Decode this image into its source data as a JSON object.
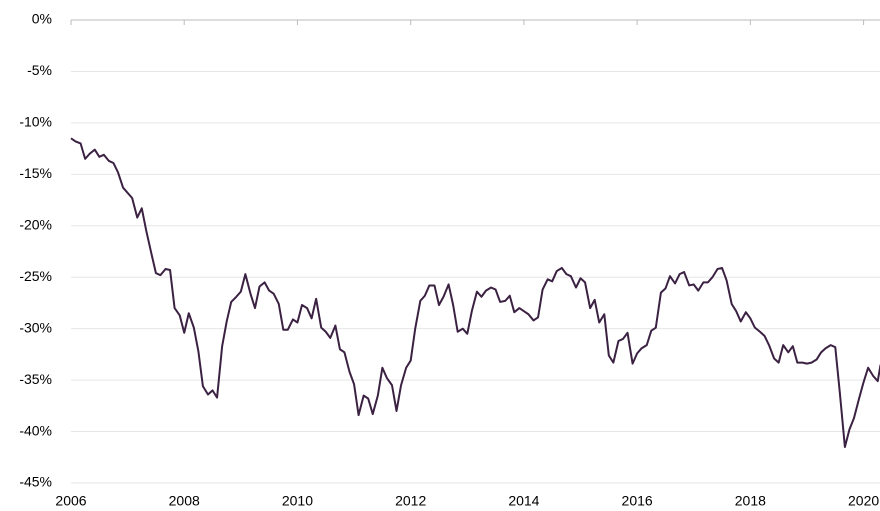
{
  "chart_data": {
    "type": "line",
    "x": [
      2006.0,
      2006.08,
      2006.17,
      2006.25,
      2006.33,
      2006.42,
      2006.5,
      2006.58,
      2006.67,
      2006.75,
      2006.83,
      2006.92,
      2007.0,
      2007.08,
      2007.17,
      2007.25,
      2007.33,
      2007.42,
      2007.5,
      2007.58,
      2007.67,
      2007.75,
      2007.83,
      2007.92,
      2008.0,
      2008.08,
      2008.17,
      2008.25,
      2008.33,
      2008.42,
      2008.5,
      2008.58,
      2008.67,
      2008.75,
      2008.83,
      2008.92,
      2009.0,
      2009.08,
      2009.17,
      2009.25,
      2009.33,
      2009.42,
      2009.5,
      2009.58,
      2009.67,
      2009.75,
      2009.83,
      2009.92,
      2010.0,
      2010.08,
      2010.17,
      2010.25,
      2010.33,
      2010.42,
      2010.5,
      2010.58,
      2010.67,
      2010.75,
      2010.83,
      2010.92,
      2011.0,
      2011.08,
      2011.17,
      2011.25,
      2011.33,
      2011.42,
      2011.5,
      2011.58,
      2011.67,
      2011.75,
      2011.83,
      2011.92,
      2012.0,
      2012.08,
      2012.17,
      2012.25,
      2012.33,
      2012.42,
      2012.5,
      2012.58,
      2012.67,
      2012.75,
      2012.83,
      2012.92,
      2013.0,
      2013.08,
      2013.17,
      2013.25,
      2013.33,
      2013.42,
      2013.5,
      2013.58,
      2013.67,
      2013.75,
      2013.83,
      2013.92,
      2014.0,
      2014.08,
      2014.17,
      2014.25,
      2014.33,
      2014.42,
      2014.5,
      2014.58,
      2014.67,
      2014.75,
      2014.83,
      2014.92,
      2015.0,
      2015.08,
      2015.17,
      2015.25,
      2015.33,
      2015.42,
      2015.5,
      2015.58,
      2015.67,
      2015.75,
      2015.83,
      2015.92,
      2016.0,
      2016.08,
      2016.17,
      2016.25,
      2016.33,
      2016.42,
      2016.5,
      2016.58,
      2016.67,
      2016.75,
      2016.83,
      2016.92,
      2017.0,
      2017.08,
      2017.17,
      2017.25,
      2017.33,
      2017.42,
      2017.5,
      2017.58,
      2017.67,
      2017.75,
      2017.83,
      2017.92,
      2018.0,
      2018.08,
      2018.17,
      2018.25,
      2018.33,
      2018.42,
      2018.5,
      2018.58,
      2018.67,
      2018.75,
      2018.83,
      2018.92,
      2019.0,
      2019.08,
      2019.17,
      2019.25,
      2019.33,
      2019.42,
      2019.5,
      2019.58,
      2019.67,
      2019.75,
      2019.83,
      2019.92,
      2020.0,
      2020.08,
      2020.17,
      2020.25,
      2020.3
    ],
    "series": [
      {
        "color": "#3b2142",
        "values": [
          -11.5,
          -11.8,
          -12.0,
          -13.5,
          -13.0,
          -12.6,
          -13.3,
          -13.1,
          -13.7,
          -13.9,
          -14.8,
          -16.3,
          -16.8,
          -17.3,
          -19.2,
          -18.3,
          -20.5,
          -22.7,
          -24.6,
          -24.8,
          -24.2,
          -24.3,
          -28.0,
          -28.7,
          -30.4,
          -28.5,
          -29.9,
          -32.2,
          -35.6,
          -36.4,
          -36.0,
          -36.7,
          -31.7,
          -29.3,
          -27.4,
          -26.9,
          -26.4,
          -24.7,
          -26.6,
          -28.0,
          -25.9,
          -25.5,
          -26.3,
          -26.6,
          -27.6,
          -30.1,
          -30.1,
          -29.1,
          -29.4,
          -27.7,
          -28.0,
          -29.0,
          -27.1,
          -29.9,
          -30.3,
          -30.9,
          -29.7,
          -32.0,
          -32.3,
          -34.2,
          -35.4,
          -38.4,
          -36.5,
          -36.8,
          -38.3,
          -36.5,
          -33.8,
          -34.8,
          -35.5,
          -38.0,
          -35.5,
          -33.8,
          -33.1,
          -30.0,
          -27.3,
          -26.8,
          -25.8,
          -25.8,
          -27.7,
          -26.9,
          -25.7,
          -27.7,
          -30.3,
          -30.0,
          -30.5,
          -28.3,
          -26.4,
          -26.9,
          -26.3,
          -26.0,
          -26.2,
          -27.4,
          -27.3,
          -26.8,
          -28.4,
          -28.0,
          -28.3,
          -28.6,
          -29.2,
          -28.9,
          -26.2,
          -25.2,
          -25.4,
          -24.4,
          -24.1,
          -24.7,
          -24.9,
          -26.0,
          -25.1,
          -25.5,
          -28.0,
          -27.2,
          -29.4,
          -28.6,
          -32.6,
          -33.3,
          -31.2,
          -31.0,
          -30.4,
          -33.4,
          -32.4,
          -31.9,
          -31.6,
          -30.2,
          -29.9,
          -26.5,
          -26.1,
          -24.9,
          -25.6,
          -24.7,
          -24.5,
          -25.8,
          -25.7,
          -26.3,
          -25.5,
          -25.5,
          -25.0,
          -24.2,
          -24.1,
          -25.3,
          -27.6,
          -28.3,
          -29.3,
          -28.4,
          -29.0,
          -29.9,
          -30.3,
          -30.7,
          -31.6,
          -32.9,
          -33.3,
          -31.6,
          -32.3,
          -31.7,
          -33.3,
          -33.3,
          -33.4,
          -33.3,
          -33.0,
          -32.3,
          -31.9,
          -31.6,
          -31.8,
          -36.2,
          -41.5,
          -39.8,
          -38.7,
          -36.8,
          -35.2,
          -33.8,
          -34.6,
          -35.1,
          -33.5
        ]
      }
    ],
    "xlim": [
      2006,
      2020.29
    ],
    "xticks": [
      2006,
      2008,
      2010,
      2012,
      2014,
      2016,
      2018,
      2020
    ],
    "ylim": [
      -45,
      0
    ],
    "yticks": [
      {
        "value": 0,
        "label": "0%"
      },
      {
        "value": -5,
        "label": "-5%"
      },
      {
        "value": -10,
        "label": "-10%"
      },
      {
        "value": -15,
        "label": "-15%"
      },
      {
        "value": -20,
        "label": "-20%"
      },
      {
        "value": -25,
        "label": "-25%"
      },
      {
        "value": -30,
        "label": "-30%"
      },
      {
        "value": -35,
        "label": "-35%"
      },
      {
        "value": -40,
        "label": "-40%"
      },
      {
        "value": -45,
        "label": "-45%"
      }
    ],
    "grid": true
  }
}
